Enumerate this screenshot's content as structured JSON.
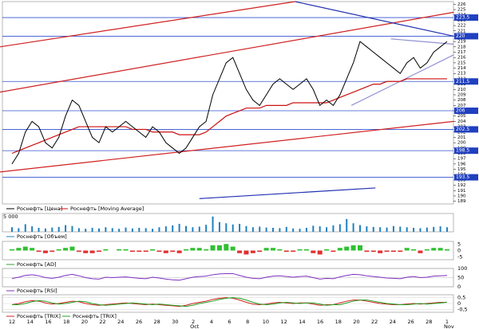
{
  "chart_data": {
    "type": "line",
    "x_labels": [
      "12",
      "14",
      "16",
      "18",
      "20",
      "22",
      "24",
      "26",
      "28",
      "30",
      "2",
      "4",
      "6",
      "8",
      "10",
      "12",
      "14",
      "16",
      "18",
      "20",
      "22",
      "24",
      "26",
      "28",
      "1"
    ],
    "months": [
      "Oct",
      "Nov"
    ],
    "ylim": [
      188.5,
      226.5
    ],
    "yticks": [
      189,
      190,
      191,
      192,
      193,
      194,
      195,
      196,
      197,
      198,
      199,
      200,
      201,
      202,
      203,
      204,
      205,
      206,
      207,
      208,
      209,
      210,
      211,
      212,
      213,
      214,
      215,
      216,
      217,
      218,
      219,
      220,
      221,
      222,
      223,
      224,
      225,
      226
    ],
    "series": [
      {
        "name": "Роснефть [Цена]",
        "color": "#000000",
        "values": [
          196,
          198,
          202,
          204,
          203,
          200,
          199,
          201,
          205,
          208,
          207,
          204,
          201,
          200,
          203,
          202,
          203,
          204,
          203,
          202,
          201,
          203,
          202,
          200,
          199,
          198,
          199,
          201,
          203,
          204,
          209,
          212,
          215,
          216,
          213,
          210,
          208,
          207,
          209,
          211,
          212,
          211,
          210,
          211,
          212,
          210,
          207,
          208,
          207,
          209,
          212,
          215,
          219,
          218,
          217,
          216,
          215,
          214,
          213,
          215,
          216,
          214,
          215,
          217,
          218,
          219
        ]
      },
      {
        "name": "Роснефть [Moving Average]",
        "color": "#cc1010",
        "values": [
          198,
          198.5,
          199,
          199.5,
          200,
          200.5,
          201,
          201.5,
          202,
          202.5,
          203,
          203,
          203,
          203,
          203,
          203,
          203,
          203,
          202.5,
          202.5,
          202.5,
          202,
          202,
          202,
          202,
          201.5,
          201.5,
          201.5,
          201.5,
          202,
          203,
          204,
          205,
          205.5,
          206,
          206.5,
          206.5,
          206.5,
          207,
          207,
          207,
          207,
          207.5,
          207.5,
          207.5,
          207.5,
          207.5,
          207.5,
          208,
          208.5,
          209,
          209.5,
          210,
          210.5,
          211,
          211,
          211.5,
          211.5,
          211.5,
          212,
          212,
          212,
          212,
          212,
          212,
          212
        ]
      }
    ],
    "levels": [
      223.5,
      220,
      211.5,
      206,
      202.5,
      198.5,
      193.5
    ],
    "trendlines": [
      {
        "x": [
          -1.8,
          42.3
        ],
        "y": [
          218,
          226.5
        ],
        "color": "#d02020"
      },
      {
        "x": [
          -1.8,
          66
        ],
        "y": [
          209.5,
          224.5
        ],
        "color": "#d02020"
      },
      {
        "x": [
          -1.8,
          66
        ],
        "y": [
          194.5,
          204
        ],
        "color": "#d02020"
      },
      {
        "x": [
          42.3,
          66
        ],
        "y": [
          226.5,
          220
        ],
        "color": "#2030b0"
      },
      {
        "x": [
          28,
          54.3
        ],
        "y": [
          189.5,
          191.5
        ],
        "color": "#2030b0"
      },
      {
        "x": [
          50.7,
          66
        ],
        "y": [
          207,
          216.5
        ],
        "color": "#9090d0"
      },
      {
        "x": [
          56.6,
          66
        ],
        "y": [
          219.5,
          218.5
        ],
        "color": "#9090d0"
      }
    ],
    "volume": {
      "name": "Роснефть [Объем]",
      "color": "#2080c0",
      "ylim": [
        0,
        6000
      ],
      "yticks": [
        {
          "value": 5000,
          "label": "5 000"
        }
      ],
      "values": [
        1500,
        1200,
        2500,
        1800,
        1300,
        1100,
        1400,
        1600,
        2200,
        1900,
        1200,
        1000,
        1300,
        1100,
        1500,
        1200,
        1000,
        1400,
        1100,
        1300,
        1200,
        1000,
        1500,
        1800,
        2100,
        2600,
        1900,
        1500,
        1700,
        2300,
        5000,
        3200,
        2800,
        2400,
        2600,
        1900,
        1500,
        1700,
        1400,
        1300,
        1200,
        1600,
        1100,
        1000,
        1300,
        2000,
        1800,
        1500,
        2100,
        2500,
        4200,
        2800,
        2200,
        1800,
        1600,
        1500,
        1400,
        1900,
        1700,
        1500,
        1300,
        1200,
        1400,
        1600,
        1800,
        1500
      ]
    },
    "ad": {
      "name": "Роснефть [AD]",
      "ylim": [
        -7,
        7
      ],
      "yticks": [
        5,
        0,
        -5
      ],
      "values": [
        1,
        2,
        3,
        2,
        -1,
        -2,
        -1,
        1,
        2,
        3,
        -1,
        -2,
        -2,
        -1,
        1,
        0,
        1,
        1,
        -1,
        -1,
        -1,
        1,
        -1,
        -2,
        -1,
        -2,
        1,
        2,
        2,
        1,
        4,
        4,
        5,
        3,
        -2,
        -3,
        -2,
        -1,
        2,
        2,
        1,
        -1,
        -1,
        1,
        1,
        -2,
        -3,
        1,
        -1,
        2,
        3,
        4,
        4,
        -1,
        -1,
        -2,
        -1,
        -1,
        -1,
        2,
        1,
        -2,
        1,
        2,
        2,
        1
      ]
    },
    "rsi": {
      "name": "Роснефть [RSI]",
      "color": "#8030c0",
      "ylim": [
        0,
        100
      ],
      "yticks": [
        100,
        50,
        0
      ],
      "values": [
        45,
        52,
        62,
        66,
        60,
        50,
        46,
        52,
        62,
        68,
        60,
        50,
        44,
        42,
        52,
        50,
        52,
        54,
        50,
        46,
        44,
        52,
        48,
        42,
        38,
        36,
        44,
        52,
        56,
        58,
        66,
        70,
        72,
        72,
        62,
        52,
        46,
        44,
        52,
        58,
        60,
        56,
        52,
        56,
        58,
        50,
        42,
        46,
        44,
        54,
        62,
        68,
        66,
        60,
        56,
        52,
        48,
        46,
        44,
        52,
        56,
        50,
        52,
        58,
        60,
        62
      ]
    },
    "trix": {
      "ylim": [
        -0.75,
        0.75
      ],
      "yticks": [
        {
          "value": 0.5,
          "label": "0,5"
        },
        0,
        {
          "value": -0.5,
          "label": "-0,5"
        }
      ],
      "series": [
        {
          "name": "Роснефть [TRIX]",
          "color": "#d02020",
          "values": [
            -0.1,
            0,
            0.15,
            0.25,
            0.2,
            0.05,
            -0.05,
            0,
            0.1,
            0.2,
            0.15,
            0,
            -0.1,
            -0.15,
            -0.1,
            -0.05,
            0,
            0.05,
            0,
            -0.05,
            -0.1,
            -0.05,
            -0.1,
            -0.15,
            -0.2,
            -0.25,
            -0.15,
            0,
            0.1,
            0.2,
            0.35,
            0.45,
            0.5,
            0.45,
            0.3,
            0.1,
            -0.05,
            -0.1,
            -0.05,
            0.05,
            0.1,
            0.05,
            0,
            0.05,
            0.05,
            -0.05,
            -0.15,
            -0.1,
            -0.1,
            0.05,
            0.2,
            0.3,
            0.3,
            0.2,
            0.1,
            0,
            -0.05,
            -0.1,
            -0.1,
            -0.05,
            0,
            -0.05,
            0,
            0.05,
            0.1,
            0.1
          ]
        },
        {
          "name": "Роснефть [TRIX]",
          "color": "#20a020",
          "values": [
            -0.1,
            -0.1,
            0,
            0.15,
            0.25,
            0.2,
            0.05,
            -0.05,
            0,
            0.1,
            0.2,
            0.15,
            0,
            -0.1,
            -0.15,
            -0.1,
            -0.05,
            0,
            0.05,
            0,
            -0.05,
            -0.1,
            -0.05,
            -0.1,
            -0.15,
            -0.2,
            -0.25,
            -0.15,
            0,
            0.1,
            0.2,
            0.35,
            0.45,
            0.5,
            0.45,
            0.3,
            0.1,
            -0.05,
            -0.1,
            -0.05,
            0.05,
            0.1,
            0.05,
            0,
            0.05,
            0.05,
            -0.05,
            -0.15,
            -0.1,
            -0.1,
            0.05,
            0.2,
            0.3,
            0.3,
            0.2,
            0.1,
            0,
            -0.05,
            -0.1,
            -0.1,
            -0.05,
            0,
            -0.05,
            0,
            0.05,
            0.1
          ]
        }
      ]
    }
  }
}
